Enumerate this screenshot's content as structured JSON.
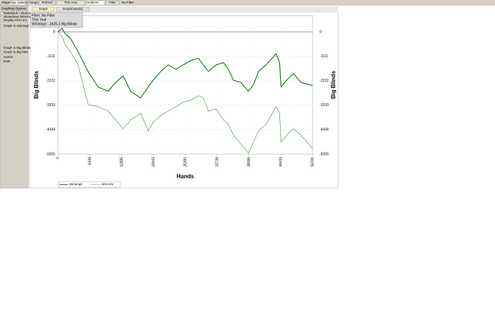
{
  "toolbar": {
    "player_label": "Player",
    "player": "bigo (alias)",
    "buttons": [
      "Change",
      "Refresh",
      "This Year"
    ],
    "game": "Hold'em",
    "filter_button": "Filter",
    "filter_status": "No Filter"
  },
  "sidebar": {
    "title": "Graphing Options",
    "options": [
      "Rakeback + Bonus",
      "Showdown Winnings",
      "Display All-in EV",
      "Graph in winnings",
      "Graph in Big Blinds",
      "Graph in Big bets",
      "Hands",
      "Date"
    ]
  },
  "tabs": [
    "Graph",
    "Graph(Hands)"
  ],
  "info_box": [
    "Filter: No Filter",
    "This Year",
    "Winnings: -2435.3 Big Blinds"
  ],
  "chart_data": {
    "type": "line",
    "x_label": "Hands",
    "y_label": "Big Blinds",
    "x": [
      0,
      800,
      1500,
      2500,
      4000,
      6000,
      8000,
      10000,
      11500,
      13000,
      14500,
      16500,
      18000,
      19000,
      20500,
      22000,
      23500,
      25000,
      26500,
      28000,
      29000,
      30000,
      31500,
      33000,
      34000,
      35000,
      36500,
      38000,
      39000,
      40000,
      41500,
      43500,
      44200,
      44500,
      46000,
      47000,
      48500,
      50781
    ],
    "series": [
      {
        "name": "Winnings",
        "color": "#006400",
        "values": [
          0,
          150,
          -100,
          -300,
          -900,
          -1800,
          -2500,
          -2700,
          -2300,
          -2000,
          -2700,
          -3000,
          -2500,
          -2200,
          -1800,
          -1500,
          -1700,
          -1500,
          -1300,
          -1200,
          -1500,
          -1800,
          -1500,
          -1400,
          -1700,
          -2200,
          -2300,
          -2700,
          -2400,
          -1800,
          -1500,
          -1000,
          -1400,
          -2500,
          -2100,
          -1900,
          -2300,
          -2435.3
        ]
      },
      {
        "name": "All-in EV",
        "color": "#3a8a3a",
        "values": [
          0,
          -200,
          -600,
          -900,
          -1500,
          -3300,
          -3400,
          -3600,
          -4000,
          -4400,
          -4000,
          -3700,
          -4500,
          -4100,
          -3800,
          -3600,
          -3400,
          -3200,
          -3100,
          -2900,
          -3000,
          -3600,
          -3500,
          -4000,
          -4200,
          -4700,
          -5100,
          -5500,
          -5000,
          -4500,
          -4200,
          -3400,
          -3700,
          -5000,
          -4600,
          -4400,
          -4700,
          -5300
        ]
      }
    ],
    "xlim": [
      0,
      50781
    ],
    "xticks": [
      0,
      6348,
      12695,
      19043,
      25390,
      31738,
      38086,
      44433,
      50781
    ],
    "ylim": [
      -5555,
      740
    ],
    "yticks": [
      0,
      -1111,
      -2222,
      -3333,
      -4444,
      -5555
    ],
    "grid": true
  }
}
